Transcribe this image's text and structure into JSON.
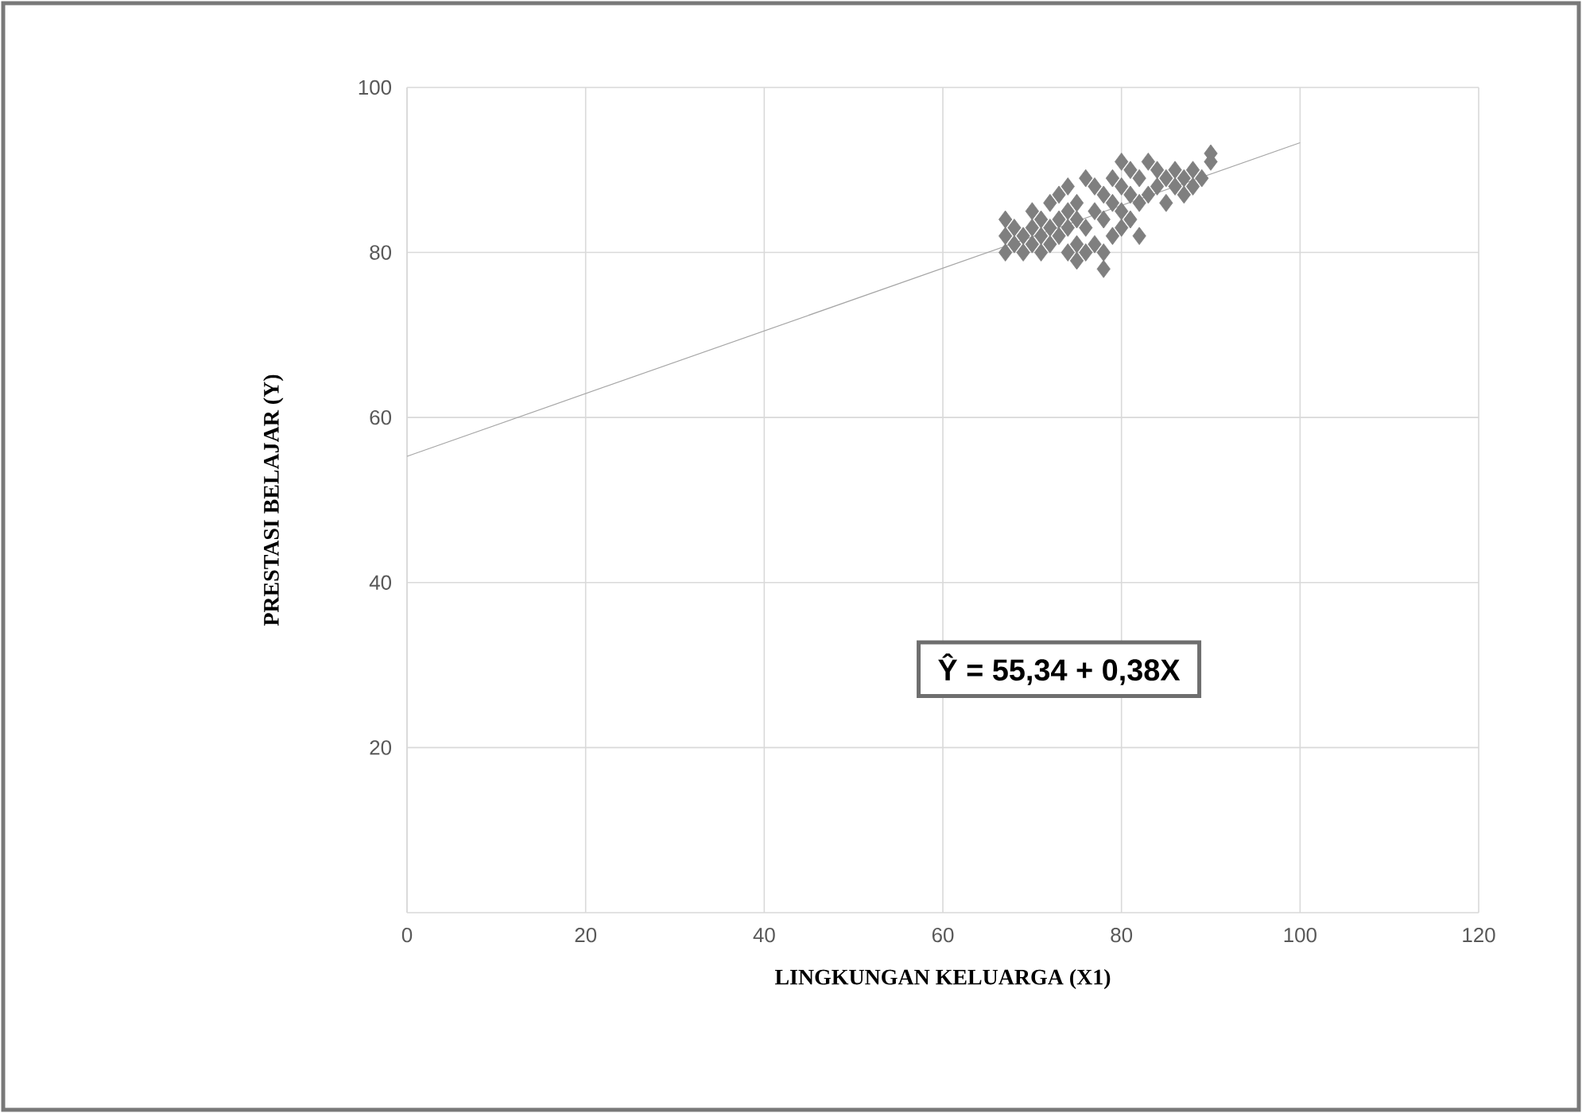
{
  "chart_data": {
    "type": "scatter",
    "xlabel": "LINGKUNGAN KELUARGA (X1)",
    "ylabel": "PRESTASI BELAJAR (Y)",
    "xlim": [
      0,
      120
    ],
    "xticks": [
      0,
      20,
      40,
      60,
      80,
      100,
      120
    ],
    "ylim": [
      0,
      100
    ],
    "yticks": [
      20,
      40,
      60,
      80,
      100
    ],
    "grid": true,
    "marker": "diamond",
    "annotations": [
      "Ŷ = 55,34 + 0,38X"
    ],
    "series": [
      {
        "color": "#7f7f7f",
        "x": [
          67,
          67,
          67,
          68,
          68,
          69,
          69,
          70,
          70,
          70,
          71,
          71,
          71,
          72,
          72,
          72,
          73,
          73,
          73,
          74,
          74,
          74,
          74,
          75,
          75,
          75,
          75,
          76,
          76,
          76,
          77,
          77,
          77,
          78,
          78,
          78,
          78,
          79,
          79,
          79,
          80,
          80,
          80,
          80,
          81,
          81,
          81,
          82,
          82,
          82,
          83,
          83,
          84,
          84,
          85,
          85,
          86,
          86,
          87,
          87,
          88,
          88,
          89,
          90,
          90
        ],
        "values": [
          80,
          82,
          84,
          81,
          83,
          80,
          82,
          81,
          83,
          85,
          80,
          82,
          84,
          81,
          83,
          86,
          82,
          84,
          87,
          80,
          83,
          85,
          88,
          79,
          81,
          84,
          86,
          80,
          83,
          89,
          81,
          85,
          88,
          78,
          80,
          84,
          87,
          82,
          86,
          89,
          83,
          85,
          88,
          91,
          84,
          87,
          90,
          82,
          86,
          89,
          87,
          91,
          88,
          90,
          86,
          89,
          88,
          90,
          87,
          89,
          88,
          90,
          89,
          91,
          92
        ]
      },
      {
        "type": "line",
        "marker": "none",
        "color": "#a6a6a6",
        "x": [
          0,
          100
        ],
        "values": [
          55.3,
          93.3
        ]
      }
    ]
  }
}
